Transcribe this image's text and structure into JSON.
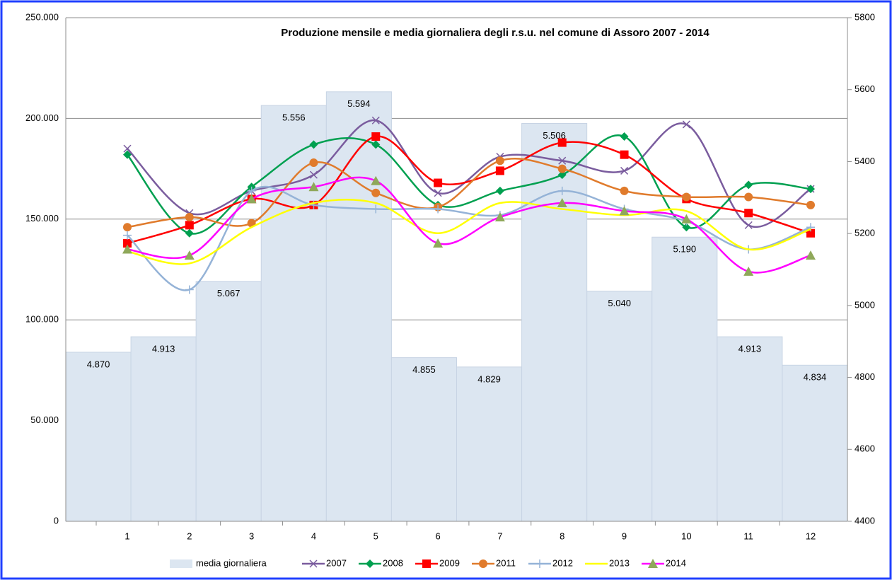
{
  "chart_data": {
    "type": "combo",
    "title": "Produzione mensile e media giornaliera degli r.s.u. nel comune di Assoro 2007 - 2014",
    "categories": [
      "1",
      "2",
      "3",
      "4",
      "5",
      "6",
      "7",
      "8",
      "9",
      "10",
      "11",
      "12"
    ],
    "ylim": [
      0,
      250000
    ],
    "yticks": [
      0,
      {
        "value": 50000,
        "label": "50.000"
      },
      {
        "value": 100000,
        "label": "100.000"
      },
      {
        "value": 150000,
        "label": "150.000"
      },
      {
        "value": 200000,
        "label": "200.000"
      },
      {
        "value": 250000,
        "label": "250.000"
      }
    ],
    "y2lim": [
      4400,
      5800
    ],
    "y2ticks": [
      4400,
      4600,
      4800,
      5000,
      5200,
      5400,
      5600,
      5800
    ],
    "grid": true,
    "legend": "bottom",
    "series": [
      {
        "name": "media giornaliera",
        "type": "bar",
        "axis": "y2",
        "color": "#dce6f1",
        "values": [
          4870,
          4913,
          5067,
          5556,
          5594,
          4855,
          4829,
          5506,
          5040,
          5190,
          4913,
          4834
        ],
        "value_labels": [
          "4.870",
          "4.913",
          "5.067",
          "5.556",
          "5.594",
          "4.855",
          "4.829",
          "5.506",
          "5.040",
          "5.190",
          "4.913",
          "4.834"
        ]
      },
      {
        "name": "2007",
        "type": "line",
        "color": "#7a5c9e",
        "marker": "x",
        "values": [
          185000,
          153000,
          164000,
          172000,
          199000,
          163000,
          181000,
          179000,
          174000,
          197000,
          147000,
          165000
        ]
      },
      {
        "name": "2008",
        "type": "line",
        "color": "#00a050",
        "marker": "diamond",
        "values": [
          182000,
          143000,
          166000,
          187000,
          187000,
          157000,
          164000,
          172000,
          191000,
          146000,
          167000,
          165000
        ]
      },
      {
        "name": "2009",
        "type": "line",
        "color": "#ff0000",
        "marker": "square",
        "values": [
          138000,
          147000,
          160000,
          157000,
          191000,
          168000,
          174000,
          188000,
          182000,
          160000,
          153000,
          143000
        ]
      },
      {
        "name": "2011",
        "type": "line",
        "color": "#e07b2c",
        "marker": "circle",
        "values": [
          146000,
          151000,
          148000,
          178000,
          163000,
          156000,
          179000,
          175000,
          164000,
          161000,
          161000,
          157000
        ]
      },
      {
        "name": "2012",
        "type": "line",
        "color": "#95b3d7",
        "marker": "plus",
        "values": [
          142000,
          115000,
          164000,
          157000,
          155000,
          155000,
          152000,
          164000,
          155000,
          149000,
          135000,
          146000
        ]
      },
      {
        "name": "2013",
        "type": "line",
        "color": "#ffff00",
        "marker": "none",
        "values": [
          134000,
          128000,
          146000,
          158000,
          158000,
          143000,
          158000,
          155000,
          152000,
          154000,
          135000,
          145000
        ]
      },
      {
        "name": "2014",
        "type": "line",
        "color": "#ff00ff",
        "marker": "triangle",
        "marker_color": "#8fa85a",
        "values": [
          135000,
          132000,
          160000,
          166000,
          169000,
          138000,
          151000,
          158000,
          154000,
          150000,
          124000,
          132000
        ]
      }
    ]
  }
}
